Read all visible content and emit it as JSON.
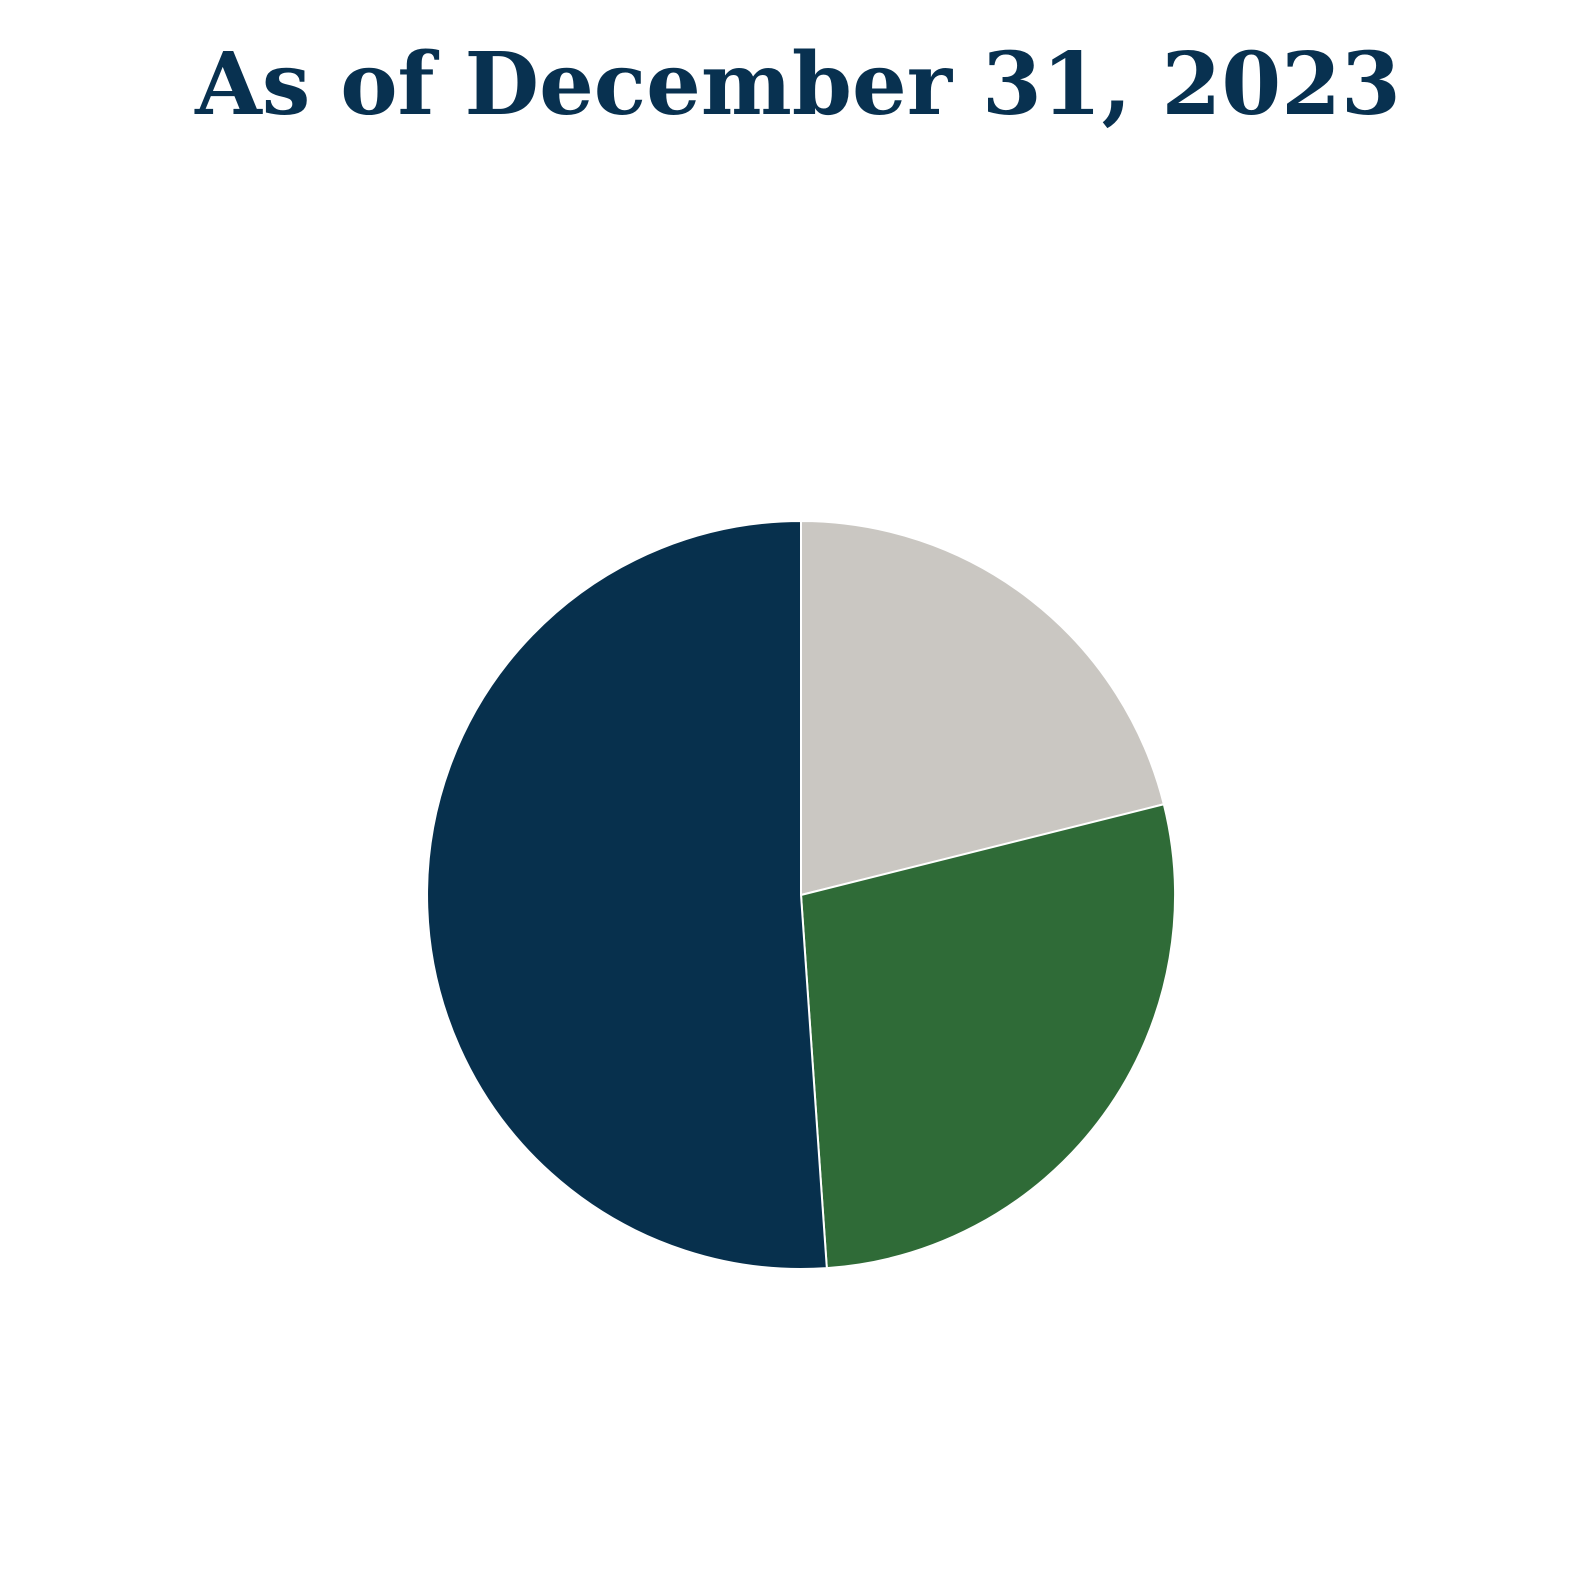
{
  "chart_data": {
    "type": "pie",
    "title": "As of December 31, 2023",
    "title_color": "#083150",
    "slices": [
      {
        "value": 21.1,
        "color": "#cac7c2"
      },
      {
        "value": 27.8,
        "color": "#2f6b37"
      },
      {
        "value": 51.1,
        "color": "#07304d"
      }
    ],
    "start_angle_deg": 0,
    "direction": "clockwise",
    "separator_color": "#ffffff",
    "legend": "none"
  }
}
